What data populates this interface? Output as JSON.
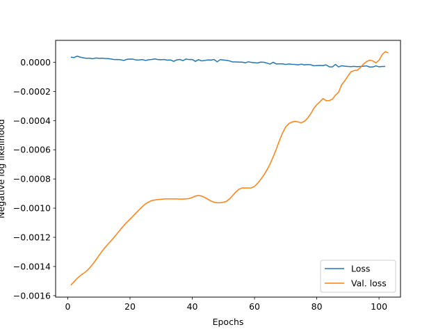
{
  "chart_data": {
    "type": "line",
    "title": "",
    "xlabel": "Epochs",
    "ylabel": "Negative log likelihood",
    "xlim": [
      -3.9,
      106.9
    ],
    "ylim": [
      -0.00161,
      0.00015
    ],
    "xticks": [
      0,
      20,
      40,
      60,
      80,
      100
    ],
    "xtick_labels": [
      "0",
      "20",
      "40",
      "60",
      "80",
      "100"
    ],
    "yticks": [
      0.0,
      -0.0002,
      -0.0004,
      -0.0006,
      -0.0008,
      -0.001,
      -0.0012,
      -0.0014,
      -0.0016
    ],
    "ytick_labels": [
      "0.0000",
      "−0.0002",
      "−0.0004",
      "−0.0006",
      "−0.0008",
      "−0.0010",
      "−0.0012",
      "−0.0014",
      "−0.0016"
    ],
    "grid": false,
    "legend_position": "lower-right",
    "series": [
      {
        "name": "Loss",
        "color": "#1f77b4",
        "points": [
          [
            1,
            3.5e-05
          ],
          [
            2,
            3.2e-05
          ],
          [
            3,
            4.2e-05
          ],
          [
            4,
            3.5e-05
          ],
          [
            5,
            3e-05
          ],
          [
            6,
            2.7e-05
          ],
          [
            7,
            2.8e-05
          ],
          [
            8,
            2.4e-05
          ],
          [
            9,
            2.9e-05
          ],
          [
            10,
            2.7e-05
          ],
          [
            11,
            2.8e-05
          ],
          [
            12,
            2.6e-05
          ],
          [
            13,
            2.5e-05
          ],
          [
            14,
            2.2e-05
          ],
          [
            15,
            1.8e-05
          ],
          [
            16,
            1.9e-05
          ],
          [
            17,
            1.7e-05
          ],
          [
            18,
            1.2e-05
          ],
          [
            19,
            2e-05
          ],
          [
            20,
            2.2e-05
          ],
          [
            21,
            2.1e-05
          ],
          [
            22,
            1.5e-05
          ],
          [
            23,
            1.6e-05
          ],
          [
            24,
            1.8e-05
          ],
          [
            25,
            1.2e-05
          ],
          [
            26,
            1.7e-05
          ],
          [
            27,
            1.9e-05
          ],
          [
            28,
            2.3e-05
          ],
          [
            29,
            1.8e-05
          ],
          [
            30,
            1.7e-05
          ],
          [
            31,
            1.9e-05
          ],
          [
            32,
            1.4e-05
          ],
          [
            33,
            1.6e-05
          ],
          [
            34,
            6e-06
          ],
          [
            35,
            1.6e-05
          ],
          [
            36,
            1.9e-05
          ],
          [
            37,
            1.1e-05
          ],
          [
            38,
            2.2e-05
          ],
          [
            39,
            1.8e-05
          ],
          [
            40,
            1.9e-05
          ],
          [
            41,
            6e-06
          ],
          [
            42,
            1.8e-05
          ],
          [
            43,
            9e-06
          ],
          [
            44,
            1.2e-05
          ],
          [
            45,
            1.6e-05
          ],
          [
            46,
            1.5e-05
          ],
          [
            47,
            1.9e-05
          ],
          [
            48,
            3e-06
          ],
          [
            49,
            1.8e-05
          ],
          [
            50,
            1.5e-05
          ],
          [
            51,
            1.3e-05
          ],
          [
            52,
            9e-06
          ],
          [
            53,
            2e-06
          ],
          [
            54,
            2e-06
          ],
          [
            55,
            1e-06
          ],
          [
            56,
            1e-06
          ],
          [
            57,
            -4e-06
          ],
          [
            58,
            3e-06
          ],
          [
            59,
            -1e-06
          ],
          [
            60,
            -3e-06
          ],
          [
            61,
            -5e-06
          ],
          [
            62,
            1e-06
          ],
          [
            63,
            0.0
          ],
          [
            64,
            -6e-06
          ],
          [
            65,
            -1.3e-05
          ],
          [
            66,
            0.0
          ],
          [
            67,
            -1.2e-05
          ],
          [
            68,
            -1.1e-05
          ],
          [
            69,
            -1.1e-05
          ],
          [
            70,
            -1.5e-05
          ],
          [
            71,
            -1.2e-05
          ],
          [
            72,
            -1.4e-05
          ],
          [
            73,
            -1.5e-05
          ],
          [
            74,
            -1.8e-05
          ],
          [
            75,
            -1.3e-05
          ],
          [
            76,
            -1.8e-05
          ],
          [
            77,
            -1.6e-05
          ],
          [
            78,
            -1.7e-05
          ],
          [
            79,
            -2.4e-05
          ],
          [
            80,
            -2.3e-05
          ],
          [
            81,
            -2.2e-05
          ],
          [
            82,
            -2.3e-05
          ],
          [
            83,
            -1.8e-05
          ],
          [
            84,
            -3.1e-05
          ],
          [
            85,
            -3.2e-05
          ],
          [
            86,
            -1.5e-05
          ],
          [
            87,
            -3.2e-05
          ],
          [
            88,
            -2.4e-05
          ],
          [
            89,
            -2.7e-05
          ],
          [
            90,
            -2.9e-05
          ],
          [
            91,
            -3e-05
          ],
          [
            92,
            -2.8e-05
          ],
          [
            93,
            -3e-05
          ],
          [
            94,
            -2.9e-05
          ],
          [
            95,
            -2.7e-05
          ],
          [
            96,
            -2.5e-05
          ],
          [
            97,
            -3.3e-05
          ],
          [
            98,
            -3.2e-05
          ],
          [
            99,
            -2.5e-05
          ],
          [
            100,
            -3.1e-05
          ],
          [
            101,
            -2.9e-05
          ],
          [
            102,
            -2.9e-05
          ]
        ]
      },
      {
        "name": "Val. loss",
        "color": "#ff7f0e",
        "points": [
          [
            1,
            -0.001528
          ],
          [
            2,
            -0.001505
          ],
          [
            3,
            -0.001482
          ],
          [
            4,
            -0.001463
          ],
          [
            5,
            -0.001448
          ],
          [
            6,
            -0.001432
          ],
          [
            7,
            -0.001411
          ],
          [
            8,
            -0.001385
          ],
          [
            9,
            -0.001356
          ],
          [
            10,
            -0.001326
          ],
          [
            11,
            -0.001296
          ],
          [
            12,
            -0.001269
          ],
          [
            13,
            -0.001245
          ],
          [
            14,
            -0.001222
          ],
          [
            15,
            -0.001197
          ],
          [
            16,
            -0.001171
          ],
          [
            17,
            -0.001145
          ],
          [
            18,
            -0.001119
          ],
          [
            19,
            -0.001097
          ],
          [
            20,
            -0.001076
          ],
          [
            21,
            -0.001054
          ],
          [
            22,
            -0.001032
          ],
          [
            23,
            -0.00101
          ],
          [
            24,
            -0.000989
          ],
          [
            25,
            -0.00097
          ],
          [
            26,
            -0.000958
          ],
          [
            27,
            -0.000948
          ],
          [
            28,
            -0.000944
          ],
          [
            29,
            -0.000941
          ],
          [
            30,
            -0.000939
          ],
          [
            31,
            -0.000937
          ],
          [
            32,
            -0.000937
          ],
          [
            33,
            -0.000937
          ],
          [
            34,
            -0.000937
          ],
          [
            35,
            -0.000937
          ],
          [
            36,
            -0.000938
          ],
          [
            37,
            -0.000938
          ],
          [
            38,
            -0.000937
          ],
          [
            39,
            -0.000934
          ],
          [
            40,
            -0.000927
          ],
          [
            41,
            -0.000917
          ],
          [
            42,
            -0.000913
          ],
          [
            43,
            -0.000917
          ],
          [
            44,
            -0.000927
          ],
          [
            45,
            -0.000939
          ],
          [
            46,
            -0.000951
          ],
          [
            47,
            -0.00096
          ],
          [
            48,
            -0.000963
          ],
          [
            49,
            -0.000963
          ],
          [
            50,
            -0.00096
          ],
          [
            51,
            -0.000953
          ],
          [
            52,
            -0.000937
          ],
          [
            53,
            -0.000913
          ],
          [
            54,
            -0.000889
          ],
          [
            55,
            -0.000871
          ],
          [
            56,
            -0.000862
          ],
          [
            57,
            -0.000862
          ],
          [
            58,
            -0.000862
          ],
          [
            59,
            -0.000861
          ],
          [
            60,
            -0.000851
          ],
          [
            61,
            -0.00083
          ],
          [
            62,
            -0.000803
          ],
          [
            63,
            -0.000773
          ],
          [
            64,
            -0.000738
          ],
          [
            65,
            -0.000697
          ],
          [
            66,
            -0.000648
          ],
          [
            67,
            -0.000595
          ],
          [
            68,
            -0.000537
          ],
          [
            69,
            -0.000485
          ],
          [
            70,
            -0.000444
          ],
          [
            71,
            -0.000421
          ],
          [
            72,
            -0.00041
          ],
          [
            73,
            -0.000405
          ],
          [
            74,
            -0.000409
          ],
          [
            75,
            -0.000415
          ],
          [
            76,
            -0.000405
          ],
          [
            77,
            -0.000385
          ],
          [
            78,
            -0.000355
          ],
          [
            79,
            -0.000318
          ],
          [
            80,
            -0.000291
          ],
          [
            81,
            -0.000271
          ],
          [
            82,
            -0.000249
          ],
          [
            83,
            -0.000263
          ],
          [
            84,
            -0.000263
          ],
          [
            85,
            -0.000254
          ],
          [
            86,
            -0.000226
          ],
          [
            87,
            -0.000206
          ],
          [
            88,
            -0.000154
          ],
          [
            89,
            -0.000127
          ],
          [
            90,
            -9.5e-05
          ],
          [
            91,
            -6.5e-05
          ],
          [
            92,
            -5.7e-05
          ],
          [
            93,
            -5.5e-05
          ],
          [
            94,
            -3.7e-05
          ],
          [
            95,
            -1.3e-05
          ],
          [
            96,
            5e-06
          ],
          [
            97,
            1.4e-05
          ],
          [
            98,
            9e-06
          ],
          [
            99,
            -4e-06
          ],
          [
            100,
            1.3e-05
          ],
          [
            101,
            5.2e-05
          ],
          [
            102,
            7.3e-05
          ],
          [
            103,
            6.3e-05
          ]
        ]
      }
    ]
  }
}
